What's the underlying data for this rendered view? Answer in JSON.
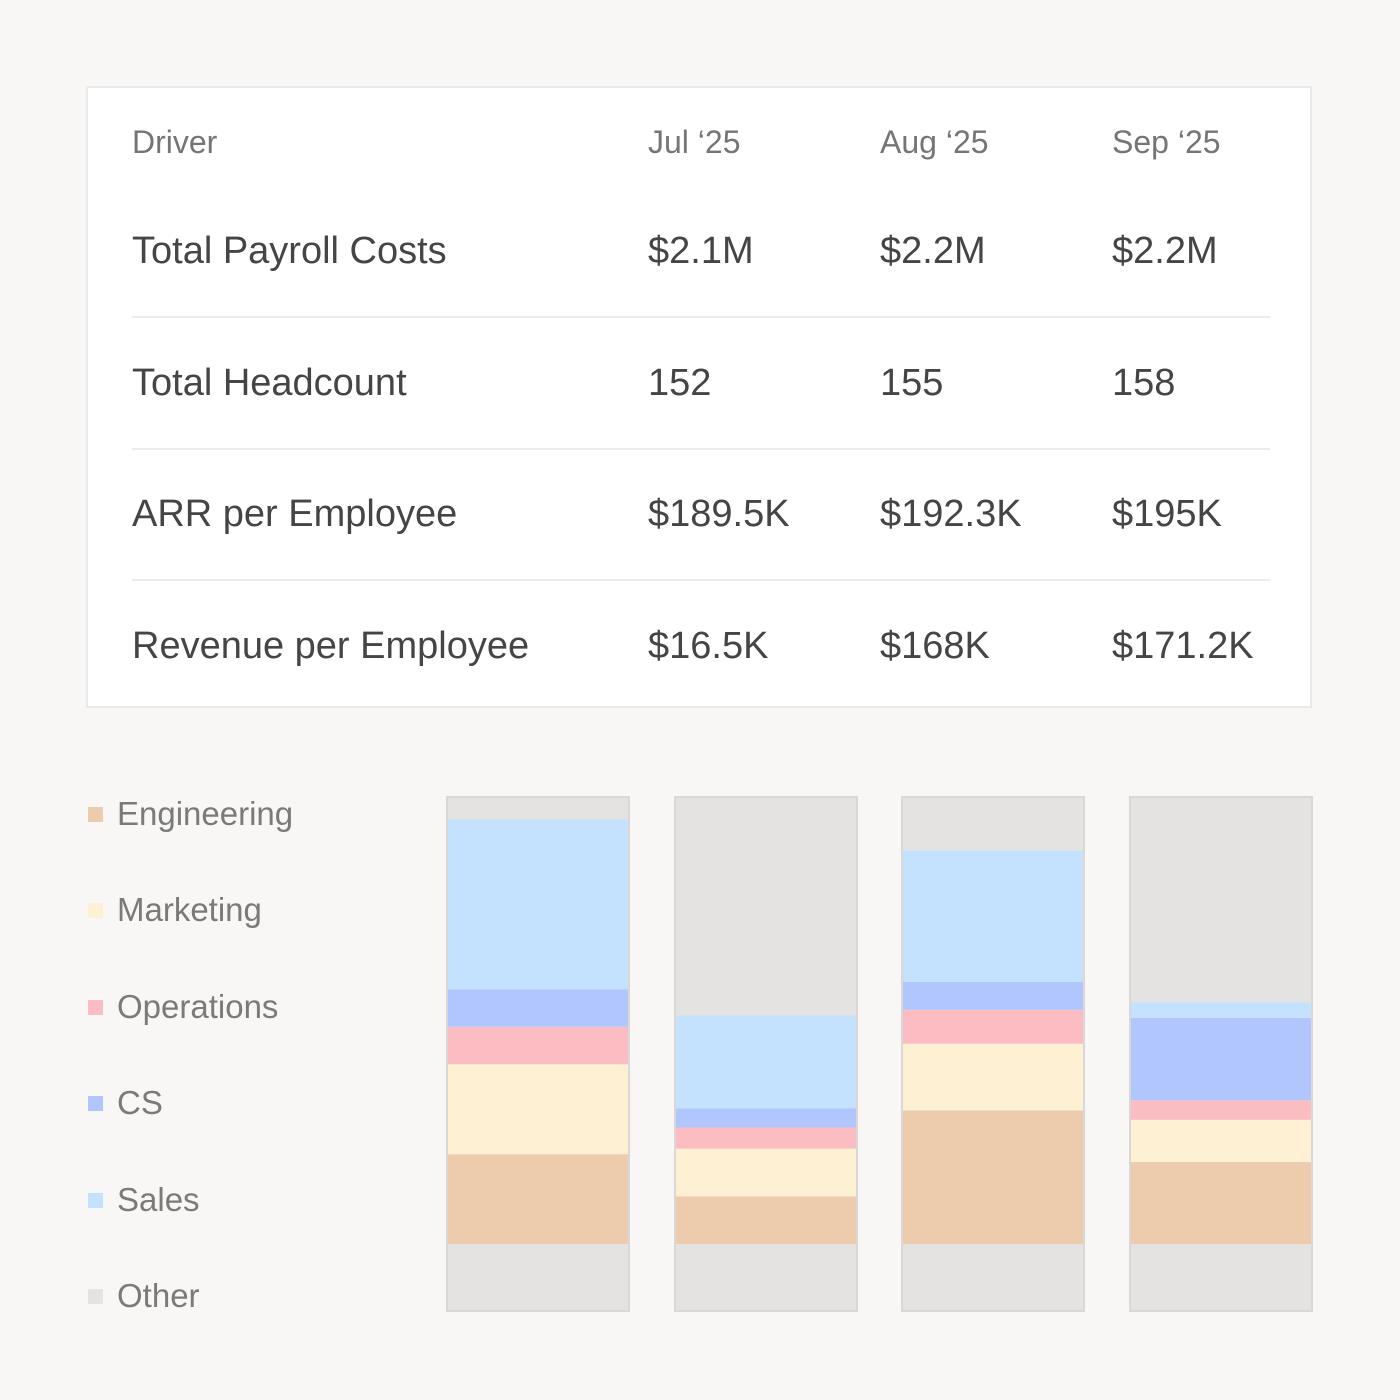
{
  "table": {
    "header": {
      "driver": "Driver",
      "months": [
        "Jul ‘25",
        "Aug ‘25",
        "Sep ‘25"
      ]
    },
    "rows": [
      {
        "label": "Total Payroll Costs",
        "values": [
          "$2.1M",
          "$2.2M",
          "$2.2M"
        ]
      },
      {
        "label": "Total Headcount",
        "values": [
          "152",
          "155",
          "158"
        ]
      },
      {
        "label": "ARR per Employee",
        "values": [
          "$189.5K",
          "$192.3K",
          "$195K"
        ]
      },
      {
        "label": "Revenue per Employee",
        "values": [
          "$16.5K",
          "$168K",
          "$171.2K"
        ]
      }
    ]
  },
  "colors": {
    "Engineering": "#edcbad",
    "Marketing": "#fef0d2",
    "Operations": "#fbbdc2",
    "CS": "#b1c6fd",
    "Sales": "#c4e2fd",
    "Other": "#e4e3e1"
  },
  "chart_data": {
    "type": "bar",
    "stacked": true,
    "categories": [
      "",
      "",
      "",
      ""
    ],
    "legend": [
      "Engineering",
      "Marketing",
      "Operations",
      "CS",
      "Sales",
      "Other"
    ],
    "legend_placement": "left",
    "series": [
      {
        "name": "Other",
        "values": [
          13,
          13,
          13,
          13
        ]
      },
      {
        "name": "Engineering",
        "values": [
          17.5,
          9.3,
          26,
          16
        ]
      },
      {
        "name": "Marketing",
        "values": [
          17.5,
          9.3,
          13,
          8.2
        ]
      },
      {
        "name": "Operations",
        "values": [
          7.3,
          4.1,
          6.6,
          3.8
        ]
      },
      {
        "name": "CS",
        "values": [
          7.3,
          3.7,
          5.4,
          16
        ]
      },
      {
        "name": "Sales",
        "values": [
          33.1,
          18.1,
          25.6,
          3.1
        ]
      },
      {
        "name": "Other",
        "values": [
          4.3,
          42.5,
          10.4,
          39.9
        ]
      }
    ],
    "ylim": [
      0,
      100
    ],
    "grid": false
  }
}
